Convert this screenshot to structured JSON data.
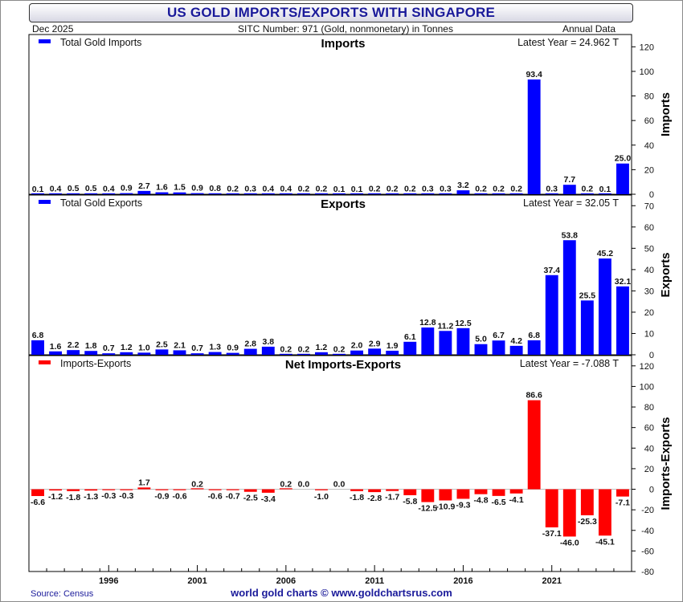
{
  "header": {
    "title": "US GOLD IMPORTS/EXPORTS WITH SINGAPORE",
    "date": "Dec  2025",
    "sitc": "SITC Number: 971 (Gold, nonmonetary) in Tonnes",
    "frequency": "Annual Data"
  },
  "footer": {
    "source": "Source: Census",
    "credit": "world gold charts © www.goldchartsrus.com"
  },
  "colors": {
    "imports": "#0000ff",
    "exports": "#0000ff",
    "net": "#ff0000"
  },
  "chart_data": [
    {
      "type": "bar",
      "title": "Imports",
      "legend": "Total Gold Imports",
      "latest": "Latest Year = 24.962 T",
      "ylabel": "Imports",
      "ylim": [
        0,
        130
      ],
      "yticks": [
        0,
        20,
        40,
        60,
        80,
        100,
        120
      ],
      "values": [
        0.1,
        0.4,
        0.5,
        0.5,
        0.4,
        0.9,
        2.7,
        1.6,
        1.5,
        0.9,
        0.8,
        0.2,
        0.3,
        0.4,
        0.4,
        0.2,
        0.2,
        0.1,
        0.1,
        0.2,
        0.2,
        0.2,
        0.3,
        0.3,
        3.2,
        0.2,
        0.2,
        0.2,
        93.4,
        0.3,
        7.7,
        0.2,
        0.1,
        25.0
      ],
      "labels": [
        "0.1",
        "0.4",
        "0.5",
        "0.5",
        "0.4",
        "0.9",
        "2.7",
        "1.6",
        "1.5",
        "0.9",
        "0.8",
        "0.2",
        "0.3",
        "0.4",
        "0.4",
        "0.2",
        "0.2",
        "0.1",
        "0.1",
        "0.2",
        "0.2",
        "0.2",
        "0.3",
        "0.3",
        "3.2",
        "0.2",
        "0.2",
        "0.2",
        "93.4",
        "0.3",
        "7.7",
        "0.2",
        "0.1",
        "25.0"
      ]
    },
    {
      "type": "bar",
      "title": "Exports",
      "legend": "Total Gold Exports",
      "latest": "Latest Year = 32.05 T",
      "ylabel": "Exports",
      "ylim": [
        0,
        75
      ],
      "yticks": [
        0,
        10,
        20,
        30,
        40,
        50,
        60,
        70
      ],
      "values": [
        6.8,
        1.6,
        2.2,
        1.8,
        0.7,
        1.2,
        1.0,
        2.5,
        2.1,
        0.7,
        1.3,
        0.9,
        2.8,
        3.8,
        0.2,
        0.2,
        1.2,
        0.2,
        2.0,
        2.9,
        1.9,
        6.1,
        12.8,
        11.2,
        12.5,
        5.0,
        6.7,
        4.2,
        6.8,
        37.4,
        53.8,
        25.5,
        45.2,
        32.1
      ],
      "labels": [
        "6.8",
        "1.6",
        "2.2",
        "1.8",
        "0.7",
        "1.2",
        "1.0",
        "2.5",
        "2.1",
        "0.7",
        "1.3",
        "0.9",
        "2.8",
        "3.8",
        "0.2",
        "0.2",
        "1.2",
        "0.2",
        "2.0",
        "2.9",
        "1.9",
        "6.1",
        "12.8",
        "11.2",
        "12.5",
        "5.0",
        "6.7",
        "4.2",
        "6.8",
        "37.4",
        "53.8",
        "25.5",
        "45.2",
        "32.1"
      ]
    },
    {
      "type": "bar",
      "title": "Net Imports-Exports",
      "legend": "Imports-Exports",
      "latest": "Latest Year = -7.088 T",
      "ylabel": "Imports-Exports",
      "ylim": [
        -80,
        130
      ],
      "yticks": [
        -80,
        -60,
        -40,
        -20,
        0,
        20,
        40,
        60,
        80,
        100,
        120
      ],
      "values": [
        -6.6,
        -1.2,
        -1.8,
        -1.3,
        -0.3,
        -0.3,
        1.7,
        -0.9,
        -0.6,
        0.2,
        -0.6,
        -0.7,
        -2.5,
        -3.4,
        0.2,
        0.0,
        -1.0,
        0.0,
        -1.8,
        -2.8,
        -1.7,
        -5.8,
        -12.5,
        -10.9,
        -9.3,
        -4.8,
        -6.5,
        -4.1,
        86.6,
        -37.1,
        -46.0,
        -25.3,
        -45.1,
        -7.1
      ],
      "labels": [
        "-6.6",
        "-1.2",
        "-1.8",
        "-1.3",
        "-0.3",
        "-0.3",
        "1.7",
        "-0.9",
        "-0.6",
        "0.2",
        "-0.6",
        "-0.7",
        "-2.5",
        "-3.4",
        "0.2",
        "0.0",
        "-1.0",
        "0.0",
        "-1.8",
        "-2.8",
        "-1.7",
        "-5.8",
        "-12.5",
        "-10.9",
        "-9.3",
        "-4.8",
        "-6.5",
        "-4.1",
        "86.6",
        "-37.1",
        "-46.0",
        "-25.3",
        "-45.1",
        "-7.1"
      ]
    }
  ],
  "x_axis": {
    "first_year": 1992,
    "ticks": [
      1996,
      2001,
      2006,
      2011,
      2016,
      2021
    ],
    "tick_labels": [
      "1996",
      "2001",
      "2006",
      "2011",
      "2016",
      "2021"
    ]
  }
}
